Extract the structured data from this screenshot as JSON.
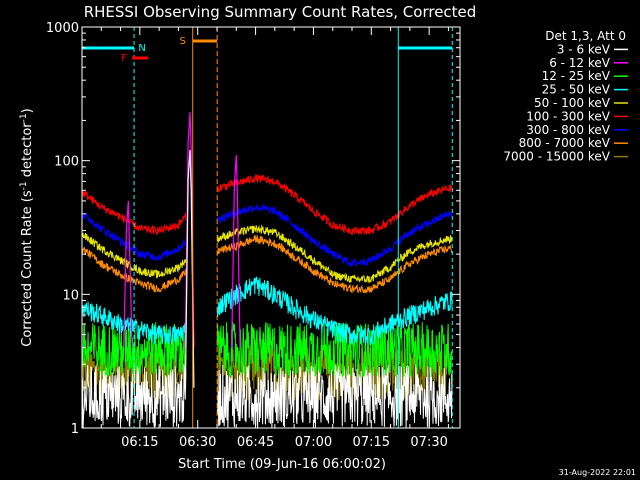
{
  "chart_data": {
    "type": "line",
    "title": "RHESSI Observing Summary Count Rates, Corrected",
    "ylabel": "Corrected Count Rate (s-1 detector-1)",
    "ylabel_parts": [
      "Corrected Count Rate (s",
      "-1",
      " detector",
      "-1",
      ")"
    ],
    "xlabel": "Start Time (09-Jun-16 06:00:02)",
    "yscale": "log",
    "ylim": [
      1,
      1000
    ],
    "xlim": [
      "06:00:02",
      "07:38:00"
    ],
    "xlim_minutes": [
      0,
      98
    ],
    "x_ticks": [
      "06:15",
      "06:30",
      "06:45",
      "07:00",
      "07:15",
      "07:30"
    ],
    "y_ticks": [
      "1",
      "10",
      "100",
      "1000"
    ],
    "legend_title": "Det 1,3, Att 0",
    "legend_position": "right",
    "series": [
      {
        "name": "3 - 6 keV",
        "color": "#ffffff"
      },
      {
        "name": "6 - 12 keV",
        "color": "#ff00ff"
      },
      {
        "name": "12 - 25 keV",
        "color": "#00ff00"
      },
      {
        "name": "25 - 50 keV",
        "color": "#00ffff"
      },
      {
        "name": "50 - 100 keV",
        "color": "#e6e600"
      },
      {
        "name": "100 - 300 keV",
        "color": "#ff0000"
      },
      {
        "name": "300 - 800 keV",
        "color": "#0000ff"
      },
      {
        "name": "800 - 7000 keV",
        "color": "#ff8c00"
      },
      {
        "name": "7000 - 15000 keV",
        "color": "#8b7a00"
      }
    ],
    "series_samples": {
      "x": [
        "06:00",
        "06:05",
        "06:10",
        "06:15",
        "06:20",
        "06:25",
        "06:35",
        "06:40",
        "06:45",
        "06:50",
        "06:55",
        "07:00",
        "07:05",
        "07:10",
        "07:15",
        "07:20",
        "07:25",
        "07:30",
        "07:35"
      ],
      "100 - 300 keV": [
        58,
        45,
        38,
        31,
        30,
        33,
        62,
        68,
        74,
        70,
        55,
        42,
        33,
        30,
        30,
        35,
        46,
        56,
        62
      ],
      "300 - 800 keV": [
        40,
        31,
        25,
        20,
        19,
        22,
        36,
        41,
        45,
        42,
        33,
        25,
        20,
        17,
        18,
        22,
        29,
        34,
        40
      ],
      "50 - 100 keV": [
        28,
        22,
        18,
        15,
        14,
        16,
        26,
        29,
        31,
        29,
        23,
        18,
        14,
        13,
        13,
        16,
        21,
        24,
        26
      ],
      "800 - 7000 keV": [
        22,
        17,
        14,
        12,
        11,
        13,
        21,
        23,
        26,
        24,
        19,
        15,
        12,
        11,
        11,
        13,
        17,
        20,
        22
      ],
      "25 - 50 keV": [
        8,
        7,
        6,
        5.5,
        5,
        5,
        8,
        10,
        12,
        10,
        8,
        6.5,
        5.5,
        5,
        5,
        6,
        7,
        8,
        9
      ],
      "12 - 25 keV": [
        4,
        4,
        4,
        4,
        4,
        4,
        5,
        5,
        5,
        5,
        5,
        5,
        5,
        5,
        5,
        5,
        5,
        5,
        5
      ]
    },
    "peaks": [
      {
        "series": "6 - 12 keV",
        "time": "06:28",
        "value": 230
      },
      {
        "series": "3 - 6 keV",
        "time": "06:28",
        "value": 120
      },
      {
        "series": "6 - 12 keV",
        "time": "06:40",
        "value": 110
      },
      {
        "series": "6 - 12 keV",
        "time": "06:12",
        "value": 50
      }
    ],
    "annotations": {
      "night_intervals": [
        {
          "start": "06:00:02",
          "end": "06:13:30",
          "label": "N"
        },
        {
          "start": "07:22:00",
          "end": "07:36:00",
          "label": ""
        }
      ],
      "flare_flag": {
        "label": "F",
        "start": "06:13:00",
        "end": "06:15:00"
      },
      "saa": {
        "label": "S",
        "start": "06:30:00",
        "end": "06:34:00"
      }
    },
    "footer_date": "31-Aug-2022 22:01"
  }
}
